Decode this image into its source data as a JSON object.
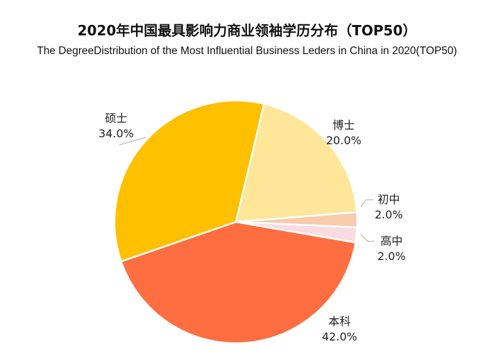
{
  "title": "2020年中国最具影响力商业领袖学历分布（TOP50）",
  "subtitle": "The DegreeDistribution of the Most Influential Business Leders in China in 2020(TOP50)",
  "chart_data": {
    "type": "pie",
    "title": "2020年中国最具影响力商业领袖学历分布（TOP50）",
    "subtitle": "The DegreeDistribution of the Most Influential Business Leders in China in 2020(TOP50)",
    "categories": [
      "博士",
      "初中",
      "高中",
      "本科",
      "硕士"
    ],
    "values": [
      20.0,
      2.0,
      2.0,
      42.0,
      34.0
    ],
    "colors": [
      "#FFE699",
      "#F8CBAD",
      "#FADBE0",
      "#FF6E40",
      "#FFC000"
    ],
    "labels": [
      {
        "name": "博士",
        "pct": "20.0%"
      },
      {
        "name": "初中",
        "pct": "2.0%"
      },
      {
        "name": "高中",
        "pct": "2.0%"
      },
      {
        "name": "本科",
        "pct": "42.0%"
      },
      {
        "name": "硕士",
        "pct": "34.0%"
      }
    ],
    "legend": "none",
    "start_angle_deg": 13.4
  }
}
